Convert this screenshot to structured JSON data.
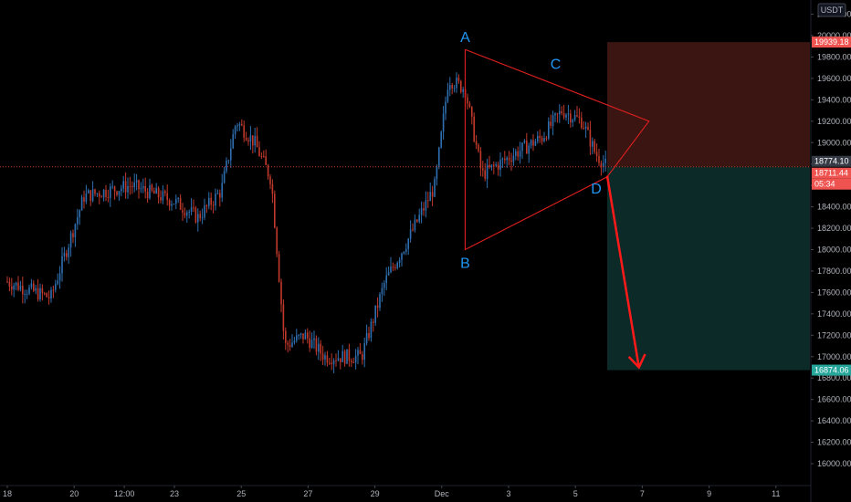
{
  "currency": "USDT",
  "colors": {
    "background": "#000000",
    "up": "#2f6fb0",
    "down": "#c0392b",
    "pattern": "#e02020",
    "label": "#2196f3",
    "stop_zone": "#3a1512",
    "target_zone": "#0c2a28",
    "axis_text": "#b2b5be",
    "stop_tag": "#ef5350",
    "target_tag": "#26a69a",
    "current_tag": "#363a45"
  },
  "price_tags": {
    "stop": "19939.18",
    "current": "18774.10",
    "last": "18711.44",
    "countdown": "05:34",
    "target": "16874.06"
  },
  "pattern_labels": [
    "A",
    "B",
    "C",
    "D"
  ],
  "chart_data": {
    "type": "candlestick",
    "title": "",
    "xlabel": "",
    "ylabel": "",
    "y_unit": "USDT",
    "ylim": [
      15900,
      20300
    ],
    "y_ticks": [
      "16000.00",
      "16200.00",
      "16400.00",
      "16600.00",
      "16800.00",
      "17000.00",
      "17200.00",
      "17400.00",
      "17600.00",
      "17800.00",
      "18000.00",
      "18200.00",
      "18400.00",
      "18600.00",
      "18800.00",
      "19000.00",
      "19200.00",
      "19400.00",
      "19600.00",
      "19800.00",
      "20000.00",
      "20200.00"
    ],
    "x_ticks": [
      "18",
      "20",
      "12:00",
      "23",
      "25",
      "27",
      "29",
      "Dec",
      "3",
      "5",
      "7",
      "9",
      "11"
    ],
    "price_path": [
      {
        "t": 0.0,
        "p": 17700
      },
      {
        "t": 1.3,
        "p": 17550
      },
      {
        "t": 2.3,
        "p": 18500
      },
      {
        "t": 3.7,
        "p": 18600
      },
      {
        "t": 5.0,
        "p": 18450
      },
      {
        "t": 5.7,
        "p": 18300
      },
      {
        "t": 6.4,
        "p": 18550
      },
      {
        "t": 6.85,
        "p": 19200
      },
      {
        "t": 7.4,
        "p": 19000
      },
      {
        "t": 7.9,
        "p": 18650
      },
      {
        "t": 8.3,
        "p": 17100
      },
      {
        "t": 8.9,
        "p": 17200
      },
      {
        "t": 9.5,
        "p": 17000
      },
      {
        "t": 10.6,
        "p": 17000
      },
      {
        "t": 11.3,
        "p": 17700
      },
      {
        "t": 12.0,
        "p": 18100
      },
      {
        "t": 12.8,
        "p": 18600
      },
      {
        "t": 13.2,
        "p": 19600
      },
      {
        "t": 13.7,
        "p": 19500
      },
      {
        "t": 14.2,
        "p": 18700
      },
      {
        "t": 14.7,
        "p": 18800
      },
      {
        "t": 15.2,
        "p": 18900
      },
      {
        "t": 16.0,
        "p": 19050
      },
      {
        "t": 16.6,
        "p": 19300
      },
      {
        "t": 17.2,
        "p": 19200
      },
      {
        "t": 17.6,
        "p": 18900
      },
      {
        "t": 17.95,
        "p": 18770
      }
    ],
    "pattern_points": [
      {
        "label": "A",
        "t": 13.7,
        "p": 19870
      },
      {
        "label": "B",
        "t": 13.7,
        "p": 18000
      },
      {
        "label": "C",
        "t": 16.3,
        "p": 19620
      },
      {
        "label": "D",
        "t": 17.95,
        "p": 18680
      }
    ],
    "triangle_apex": {
      "t": 19.2,
      "p": 19200
    },
    "position": {
      "entry": 18774.1,
      "stop": 19939.18,
      "target": 16874.06,
      "t_start": 17.95,
      "t_end": 26.5
    },
    "projection": {
      "from": {
        "t": 17.95,
        "p": 18690
      },
      "to": {
        "t": 18.9,
        "p": 16900
      }
    },
    "current_price": 18774.1
  }
}
